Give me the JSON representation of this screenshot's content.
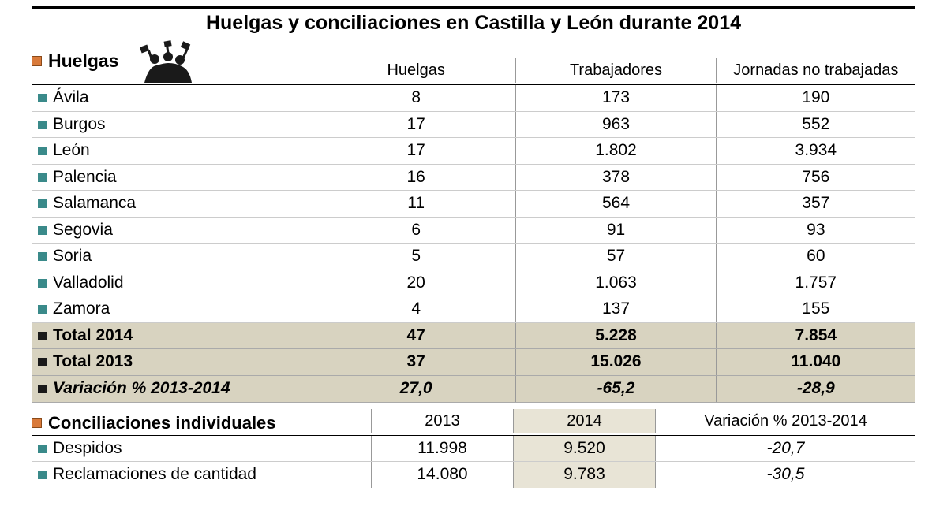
{
  "title": "Huelgas y conciliaciones en Castilla y León durante 2014",
  "huelgas": {
    "section_label": "Huelgas",
    "columns": [
      "Huelgas",
      "Trabajadores",
      "Jornadas no trabajadas"
    ],
    "rows": [
      {
        "province": "Ávila",
        "huelgas": "8",
        "trabajadores": "173",
        "jornadas": "190"
      },
      {
        "province": "Burgos",
        "huelgas": "17",
        "trabajadores": "963",
        "jornadas": "552"
      },
      {
        "province": "León",
        "huelgas": "17",
        "trabajadores": "1.802",
        "jornadas": "3.934"
      },
      {
        "province": "Palencia",
        "huelgas": "16",
        "trabajadores": "378",
        "jornadas": "756"
      },
      {
        "province": "Salamanca",
        "huelgas": "11",
        "trabajadores": "564",
        "jornadas": "357"
      },
      {
        "province": "Segovia",
        "huelgas": "6",
        "trabajadores": "91",
        "jornadas": "93"
      },
      {
        "province": "Soria",
        "huelgas": "5",
        "trabajadores": "57",
        "jornadas": "60"
      },
      {
        "province": "Valladolid",
        "huelgas": "20",
        "trabajadores": "1.063",
        "jornadas": "1.757"
      },
      {
        "province": "Zamora",
        "huelgas": "4",
        "trabajadores": "137",
        "jornadas": "155"
      }
    ],
    "totals": [
      {
        "label": "Total 2014",
        "huelgas": "47",
        "trabajadores": "5.228",
        "jornadas": "7.854",
        "italic": false
      },
      {
        "label": "Total 2013",
        "huelgas": "37",
        "trabajadores": "15.026",
        "jornadas": "11.040",
        "italic": false
      },
      {
        "label": "Variación % 2013-2014",
        "huelgas": "27,0",
        "trabajadores": "-65,2",
        "jornadas": "-28,9",
        "italic": true
      }
    ]
  },
  "conciliaciones": {
    "section_label": "Conciliaciones individuales",
    "columns": [
      "2013",
      "2014",
      "Variación % 2013-2014"
    ],
    "rows": [
      {
        "label": "Despidos",
        "y2013": "11.998",
        "y2014": "9.520",
        "var": "-20,7"
      },
      {
        "label": "Reclamaciones de cantidad",
        "y2013": "14.080",
        "y2014": "9.783",
        "var": "-30,5"
      }
    ]
  },
  "style": {
    "bg": "#ffffff",
    "highlight_bg": "#d8d3c0",
    "shaded_col_bg": "#e8e4d6",
    "orange_bullet": "#d97a3a",
    "teal_bullet": "#3a8a8a",
    "black": "#000000",
    "rule": "#cccccc",
    "font_family": "Arial",
    "title_fontsize": 25,
    "body_fontsize": 21,
    "header_fontsize": 20
  }
}
